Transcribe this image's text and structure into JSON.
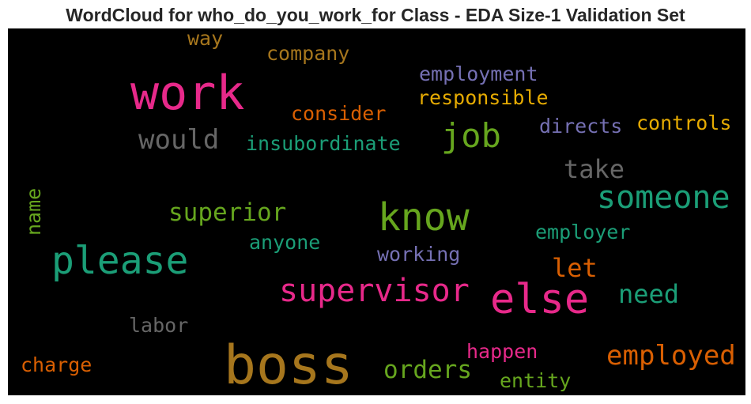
{
  "chart_data": {
    "type": "wordcloud",
    "title": "WordCloud for who_do_you_work_for Class - EDA Size-1 Validation Set",
    "background": "#000000",
    "colormap": [
      "#e7298a",
      "#1b9e77",
      "#a6761d",
      "#66a61e",
      "#d95f02",
      "#7570b3",
      "#e6ab02",
      "#666666"
    ],
    "words": [
      {
        "text": "work",
        "color": "#e7298a"
      },
      {
        "text": "boss",
        "color": "#a6761d"
      },
      {
        "text": "else",
        "color": "#e7298a"
      },
      {
        "text": "please",
        "color": "#1b9e77"
      },
      {
        "text": "know",
        "color": "#66a61e"
      },
      {
        "text": "supervisor",
        "color": "#e7298a"
      },
      {
        "text": "someone",
        "color": "#1b9e77"
      },
      {
        "text": "job",
        "color": "#66a61e"
      },
      {
        "text": "employed",
        "color": "#d95f02"
      },
      {
        "text": "superior",
        "color": "#66a61e"
      },
      {
        "text": "would",
        "color": "#666666"
      },
      {
        "text": "need",
        "color": "#1b9e77"
      },
      {
        "text": "orders",
        "color": "#66a61e"
      },
      {
        "text": "take",
        "color": "#666666"
      },
      {
        "text": "let",
        "color": "#d95f02"
      },
      {
        "text": "employment",
        "color": "#7570b3"
      },
      {
        "text": "company",
        "color": "#a6761d"
      },
      {
        "text": "responsible",
        "color": "#e6ab02"
      },
      {
        "text": "consider",
        "color": "#d95f02"
      },
      {
        "text": "insubordinate",
        "color": "#1b9e77"
      },
      {
        "text": "directs",
        "color": "#7570b3"
      },
      {
        "text": "controls",
        "color": "#e6ab02"
      },
      {
        "text": "employer",
        "color": "#1b9e77"
      },
      {
        "text": "anyone",
        "color": "#1b9e77"
      },
      {
        "text": "working",
        "color": "#7570b3"
      },
      {
        "text": "happen",
        "color": "#e7298a"
      },
      {
        "text": "entity",
        "color": "#66a61e"
      },
      {
        "text": "charge",
        "color": "#d95f02"
      },
      {
        "text": "labor",
        "color": "#666666"
      },
      {
        "text": "way",
        "color": "#a6761d"
      },
      {
        "text": "name",
        "color": "#66a61e"
      }
    ]
  }
}
